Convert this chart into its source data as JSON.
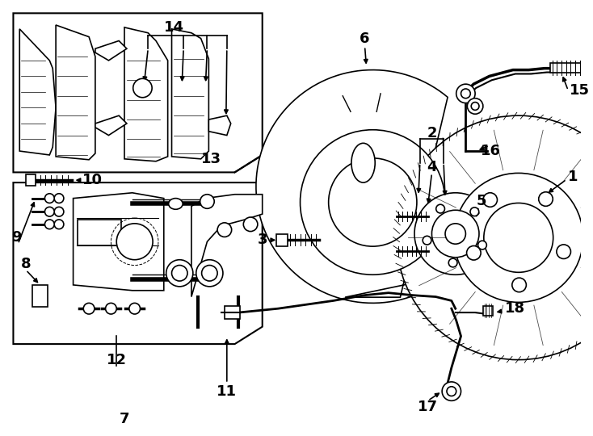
{
  "bg_color": "#ffffff",
  "line_color": "#000000",
  "lw": 1.5,
  "label_fontsize": 13
}
